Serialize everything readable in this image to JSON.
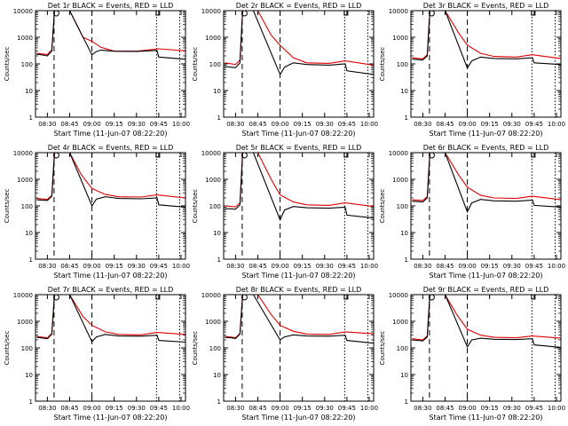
{
  "chart_data": {
    "type": "line",
    "yscale": "log",
    "ylim": [
      1,
      10000
    ],
    "yticks": [
      "1",
      "10",
      "100",
      "1000",
      "10000"
    ],
    "ylabel": "Counts/sec",
    "xlim": [
      "08:22",
      "10:03"
    ],
    "xticks": [
      "08:30",
      "08:45",
      "09:00",
      "09:15",
      "09:30",
      "09:45",
      "10:00"
    ],
    "xlabel": "Start Time (11-Jun-07 08:22:20)",
    "colors": {
      "events": "#000000",
      "lld": "#e00000"
    },
    "panels": [
      {
        "title": "Det 1r BLACK = Events, RED = LLD",
        "events": [
          [
            8.38,
            230
          ],
          [
            8.45,
            215
          ],
          [
            8.5,
            200
          ],
          [
            8.55,
            310
          ],
          [
            8.58,
            10000
          ],
          [
            8.75,
            10000
          ],
          [
            9.0,
            220
          ],
          [
            9.05,
            290
          ],
          [
            9.1,
            330
          ],
          [
            9.25,
            300
          ],
          [
            9.5,
            295
          ],
          [
            9.73,
            320
          ],
          [
            9.75,
            180
          ],
          [
            10.05,
            150
          ]
        ],
        "lld": [
          [
            8.38,
            250
          ],
          [
            8.45,
            235
          ],
          [
            8.5,
            225
          ],
          [
            8.55,
            340
          ],
          [
            8.58,
            10000
          ],
          [
            8.75,
            10000
          ],
          [
            8.9,
            1000
          ],
          [
            9.0,
            700
          ],
          [
            9.1,
            420
          ],
          [
            9.25,
            300
          ],
          [
            9.5,
            300
          ],
          [
            9.75,
            370
          ],
          [
            10.05,
            310
          ]
        ]
      },
      {
        "title": "Det 2r BLACK = Events, RED = LLD",
        "events": [
          [
            8.38,
            80
          ],
          [
            8.5,
            72
          ],
          [
            8.55,
            110
          ],
          [
            8.58,
            10000
          ],
          [
            8.7,
            10000
          ],
          [
            9.0,
            40
          ],
          [
            9.05,
            75
          ],
          [
            9.15,
            110
          ],
          [
            9.3,
            95
          ],
          [
            9.55,
            90
          ],
          [
            9.73,
            100
          ],
          [
            9.75,
            55
          ],
          [
            10.05,
            40
          ]
        ],
        "lld": [
          [
            8.38,
            110
          ],
          [
            8.5,
            95
          ],
          [
            8.55,
            140
          ],
          [
            8.58,
            10000
          ],
          [
            8.75,
            10000
          ],
          [
            8.9,
            1200
          ],
          [
            9.0,
            500
          ],
          [
            9.15,
            170
          ],
          [
            9.3,
            110
          ],
          [
            9.55,
            105
          ],
          [
            9.73,
            130
          ],
          [
            10.05,
            90
          ]
        ]
      },
      {
        "title": "Det 3r BLACK = Events, RED = LLD",
        "events": [
          [
            8.38,
            150
          ],
          [
            8.5,
            140
          ],
          [
            8.55,
            200
          ],
          [
            8.58,
            10000
          ],
          [
            8.75,
            10000
          ],
          [
            9.0,
            70
          ],
          [
            9.05,
            130
          ],
          [
            9.15,
            180
          ],
          [
            9.3,
            160
          ],
          [
            9.55,
            155
          ],
          [
            9.73,
            170
          ],
          [
            9.75,
            110
          ],
          [
            10.05,
            95
          ]
        ],
        "lld": [
          [
            8.38,
            170
          ],
          [
            8.5,
            155
          ],
          [
            8.55,
            220
          ],
          [
            8.58,
            10000
          ],
          [
            8.75,
            10000
          ],
          [
            8.9,
            1500
          ],
          [
            9.0,
            500
          ],
          [
            9.15,
            250
          ],
          [
            9.3,
            190
          ],
          [
            9.55,
            180
          ],
          [
            9.73,
            220
          ],
          [
            10.05,
            160
          ]
        ]
      },
      {
        "title": "Det 4r BLACK = Events, RED = LLD",
        "events": [
          [
            8.38,
            170
          ],
          [
            8.5,
            160
          ],
          [
            8.55,
            230
          ],
          [
            8.58,
            10000
          ],
          [
            8.75,
            10000
          ],
          [
            9.0,
            100
          ],
          [
            9.05,
            180
          ],
          [
            9.15,
            220
          ],
          [
            9.3,
            190
          ],
          [
            9.55,
            185
          ],
          [
            9.73,
            200
          ],
          [
            9.75,
            110
          ],
          [
            10.05,
            90
          ]
        ],
        "lld": [
          [
            8.38,
            190
          ],
          [
            8.5,
            175
          ],
          [
            8.55,
            250
          ],
          [
            8.58,
            10000
          ],
          [
            8.75,
            10000
          ],
          [
            8.88,
            1500
          ],
          [
            9.0,
            450
          ],
          [
            9.15,
            270
          ],
          [
            9.3,
            220
          ],
          [
            9.55,
            215
          ],
          [
            9.73,
            260
          ],
          [
            10.05,
            200
          ]
        ]
      },
      {
        "title": "Det 5r BLACK = Events, RED = LLD",
        "events": [
          [
            8.38,
            80
          ],
          [
            8.5,
            75
          ],
          [
            8.55,
            110
          ],
          [
            8.58,
            10000
          ],
          [
            8.7,
            10000
          ],
          [
            9.0,
            30
          ],
          [
            9.05,
            70
          ],
          [
            9.15,
            95
          ],
          [
            9.3,
            85
          ],
          [
            9.55,
            82
          ],
          [
            9.73,
            90
          ],
          [
            9.75,
            45
          ],
          [
            10.05,
            35
          ]
        ],
        "lld": [
          [
            8.38,
            100
          ],
          [
            8.5,
            92
          ],
          [
            8.55,
            130
          ],
          [
            8.58,
            10000
          ],
          [
            8.75,
            10000
          ],
          [
            8.9,
            1000
          ],
          [
            9.0,
            260
          ],
          [
            9.15,
            140
          ],
          [
            9.3,
            110
          ],
          [
            9.55,
            105
          ],
          [
            9.73,
            130
          ],
          [
            10.05,
            95
          ]
        ]
      },
      {
        "title": "Det 6r BLACK = Events, RED = LLD",
        "events": [
          [
            8.38,
            150
          ],
          [
            8.5,
            140
          ],
          [
            8.55,
            200
          ],
          [
            8.58,
            10000
          ],
          [
            8.75,
            10000
          ],
          [
            9.0,
            60
          ],
          [
            9.05,
            130
          ],
          [
            9.15,
            175
          ],
          [
            9.3,
            155
          ],
          [
            9.55,
            150
          ],
          [
            9.73,
            165
          ],
          [
            9.75,
            105
          ],
          [
            10.05,
            90
          ]
        ],
        "lld": [
          [
            8.38,
            170
          ],
          [
            8.5,
            160
          ],
          [
            8.55,
            220
          ],
          [
            8.58,
            10000
          ],
          [
            8.75,
            10000
          ],
          [
            8.9,
            1500
          ],
          [
            9.0,
            500
          ],
          [
            9.15,
            250
          ],
          [
            9.3,
            200
          ],
          [
            9.55,
            190
          ],
          [
            9.73,
            230
          ],
          [
            10.05,
            170
          ]
        ]
      },
      {
        "title": "Det 7r BLACK = Events, RED = LLD",
        "events": [
          [
            8.38,
            250
          ],
          [
            8.45,
            235
          ],
          [
            8.5,
            220
          ],
          [
            8.55,
            330
          ],
          [
            8.58,
            10000
          ],
          [
            8.75,
            10000
          ],
          [
            9.0,
            170
          ],
          [
            9.05,
            260
          ],
          [
            9.15,
            320
          ],
          [
            9.3,
            280
          ],
          [
            9.55,
            275
          ],
          [
            9.73,
            300
          ],
          [
            9.75,
            190
          ],
          [
            10.05,
            165
          ]
        ],
        "lld": [
          [
            8.38,
            270
          ],
          [
            8.45,
            250
          ],
          [
            8.5,
            240
          ],
          [
            8.55,
            350
          ],
          [
            8.58,
            10000
          ],
          [
            8.75,
            10000
          ],
          [
            8.9,
            1500
          ],
          [
            9.0,
            700
          ],
          [
            9.15,
            400
          ],
          [
            9.3,
            320
          ],
          [
            9.55,
            310
          ],
          [
            9.73,
            380
          ],
          [
            10.05,
            320
          ]
        ]
      },
      {
        "title": "Det 8r BLACK = Events, RED = LLD",
        "events": [
          [
            8.38,
            250
          ],
          [
            8.45,
            240
          ],
          [
            8.5,
            225
          ],
          [
            8.55,
            330
          ],
          [
            8.58,
            10000
          ],
          [
            8.7,
            10000
          ],
          [
            9.0,
            200
          ],
          [
            9.05,
            260
          ],
          [
            9.15,
            310
          ],
          [
            9.3,
            280
          ],
          [
            9.55,
            275
          ],
          [
            9.73,
            300
          ],
          [
            9.75,
            190
          ],
          [
            10.05,
            150
          ]
        ],
        "lld": [
          [
            8.38,
            270
          ],
          [
            8.45,
            255
          ],
          [
            8.5,
            240
          ],
          [
            8.55,
            350
          ],
          [
            8.58,
            10000
          ],
          [
            8.75,
            10000
          ],
          [
            8.9,
            1800
          ],
          [
            9.0,
            700
          ],
          [
            9.15,
            420
          ],
          [
            9.3,
            330
          ],
          [
            9.55,
            320
          ],
          [
            9.73,
            400
          ],
          [
            10.05,
            340
          ]
        ]
      },
      {
        "title": "Det 9r BLACK = Events, RED = LLD",
        "events": [
          [
            8.38,
            200
          ],
          [
            8.5,
            185
          ],
          [
            8.55,
            260
          ],
          [
            8.58,
            10000
          ],
          [
            8.75,
            10000
          ],
          [
            9.0,
            110
          ],
          [
            9.05,
            200
          ],
          [
            9.15,
            230
          ],
          [
            9.3,
            210
          ],
          [
            9.55,
            205
          ],
          [
            9.73,
            220
          ],
          [
            9.75,
            130
          ],
          [
            10.05,
            105
          ]
        ],
        "lld": [
          [
            8.38,
            220
          ],
          [
            8.5,
            200
          ],
          [
            8.55,
            280
          ],
          [
            8.58,
            10000
          ],
          [
            8.75,
            10000
          ],
          [
            8.88,
            1800
          ],
          [
            9.0,
            500
          ],
          [
            9.15,
            300
          ],
          [
            9.3,
            250
          ],
          [
            9.55,
            240
          ],
          [
            9.73,
            280
          ],
          [
            10.05,
            230
          ]
        ]
      }
    ]
  }
}
